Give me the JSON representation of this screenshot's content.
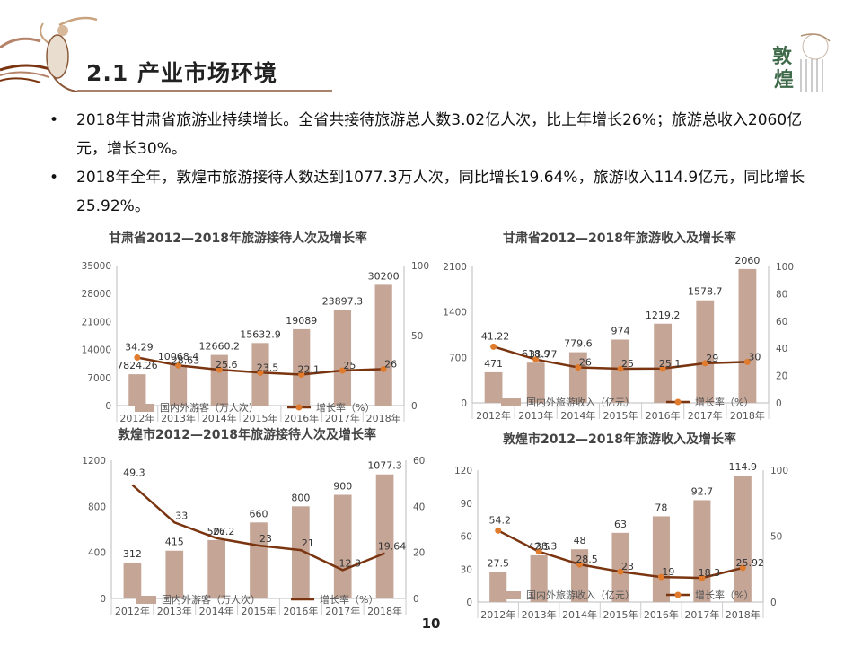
{
  "slide": {
    "title": "2.1 产业市场环境",
    "bullet_symbol": "•",
    "bullets": [
      "2018年甘肃省旅游业持续增长。全省共接待旅游总人数3.02亿人次，比上年增长26%；旅游总收入2060亿元，增长30%。",
      "2018年全年，敦煌市旅游接待人数达到1077.3万人次，同比增长19.64%，旅游收入114.9亿元，同比增长25.92%。"
    ],
    "page_number": "10",
    "logo_right_text": [
      "敦",
      "煌"
    ],
    "colors": {
      "bar": "#c4a596",
      "line": "#7a3510",
      "marker": "#e07b2d",
      "accent": "#a9826a"
    }
  },
  "chart_data": [
    {
      "type": "bar",
      "title": "甘肃省2012—2018年旅游接待人次及增长率",
      "categories": [
        "2012年",
        "2013年",
        "2014年",
        "2015年",
        "2016年",
        "2017年",
        "2018年"
      ],
      "series": [
        {
          "name": "国内外游客（万人次）",
          "type": "bar",
          "axis": "left",
          "values": [
            7824.26,
            10068.4,
            12660.2,
            15632.9,
            19089,
            23897.3,
            30200
          ],
          "labels": [
            "7824.26",
            "10068.4",
            "12660.2",
            "15632.9",
            "19089",
            "23897.3",
            "30200"
          ]
        },
        {
          "name": "增长率（%）",
          "type": "line",
          "axis": "right",
          "markers": true,
          "values": [
            34.29,
            28.63,
            25.6,
            23.5,
            22.1,
            25,
            26
          ],
          "labels": [
            "34.29",
            "28.63",
            "25.6",
            "23.5",
            "22.1",
            "25",
            "26"
          ]
        }
      ],
      "ylim": [
        0,
        35000
      ],
      "yticks": [
        "0",
        "7000",
        "14000",
        "21000",
        "28000",
        "35000"
      ],
      "y2lim": [
        0,
        100
      ],
      "y2ticks": [
        "0",
        "50",
        "100"
      ],
      "legend": "bottom",
      "grid": false
    },
    {
      "type": "bar",
      "title": "甘肃省2012—2018年旅游收入及增长率",
      "categories": [
        "2012年",
        "2013年",
        "2014年",
        "2015年",
        "2016年",
        "2017年",
        "2018年"
      ],
      "series": [
        {
          "name": "国内外旅游收入（亿元）",
          "type": "bar",
          "axis": "left",
          "values": [
            471,
            618.9,
            779.6,
            974,
            1219.2,
            1578.7,
            2060
          ],
          "labels": [
            "471",
            "618.9",
            "779.6",
            "974",
            "1219.2",
            "1578.7",
            "2060"
          ]
        },
        {
          "name": "增长率（%）",
          "type": "line",
          "axis": "right",
          "markers": true,
          "values": [
            41.22,
            31.77,
            26,
            25,
            25.1,
            29,
            30
          ],
          "labels": [
            "41.22",
            "31.77",
            "26",
            "25",
            "25.1",
            "29",
            "30"
          ]
        }
      ],
      "ylim": [
        0,
        2100
      ],
      "yticks": [
        "0",
        "700",
        "1400",
        "2100"
      ],
      "y2lim": [
        0,
        100
      ],
      "y2ticks": [
        "0",
        "20",
        "40",
        "60",
        "80",
        "100"
      ],
      "legend": "bottom",
      "grid": false
    },
    {
      "type": "bar",
      "title": "敦煌市2012—2018年旅游接待人次及增长率",
      "categories": [
        "2012年",
        "2013年",
        "2014年",
        "2015年",
        "2016年",
        "2017年",
        "2018年"
      ],
      "series": [
        {
          "name": "国内外游客（万人次）",
          "type": "bar",
          "axis": "left",
          "values": [
            312,
            415,
            507,
            660,
            800,
            900,
            1077.3
          ],
          "labels": [
            "312",
            "415",
            "507",
            "660",
            "800",
            "900",
            "1077.3"
          ]
        },
        {
          "name": "增长率（%）",
          "type": "line",
          "axis": "right",
          "markers": false,
          "values": [
            49.3,
            33,
            26.2,
            23,
            21,
            12.3,
            19.64
          ],
          "labels": [
            "49.3",
            "33",
            "26.2",
            "23",
            "21",
            "12.3",
            "19.64"
          ]
        }
      ],
      "ylim": [
        0,
        1200
      ],
      "yticks": [
        "0",
        "400",
        "800",
        "1200"
      ],
      "y2lim": [
        0,
        60
      ],
      "y2ticks": [
        "0",
        "20",
        "40",
        "60"
      ],
      "legend": "bottom",
      "grid": false
    },
    {
      "type": "bar",
      "title": "敦煌市2012—2018年旅游收入及增长率",
      "categories": [
        "2012年",
        "2013年",
        "2014年",
        "2015年",
        "2016年",
        "2017年",
        "2018年"
      ],
      "series": [
        {
          "name": "国内外旅游收入（亿元）",
          "type": "bar",
          "axis": "left",
          "values": [
            27.5,
            42.5,
            48,
            63,
            78,
            92.7,
            114.9
          ],
          "labels": [
            "27.5",
            "42.5",
            "48",
            "63",
            "78",
            "92.7",
            "114.9"
          ]
        },
        {
          "name": "增长率（%）",
          "type": "line",
          "axis": "right",
          "markers": true,
          "values": [
            54.2,
            38.3,
            28.5,
            23,
            19,
            18.3,
            25.92
          ],
          "labels": [
            "54.2",
            "38.3",
            "28.5",
            "23",
            "19",
            "18.3",
            "25.92"
          ]
        }
      ],
      "ylim": [
        0,
        120
      ],
      "yticks": [
        "0",
        "30",
        "60",
        "90",
        "120"
      ],
      "y2lim": [
        0,
        100
      ],
      "y2ticks": [
        "0",
        "50",
        "100"
      ],
      "legend": "bottom",
      "grid": false
    }
  ]
}
